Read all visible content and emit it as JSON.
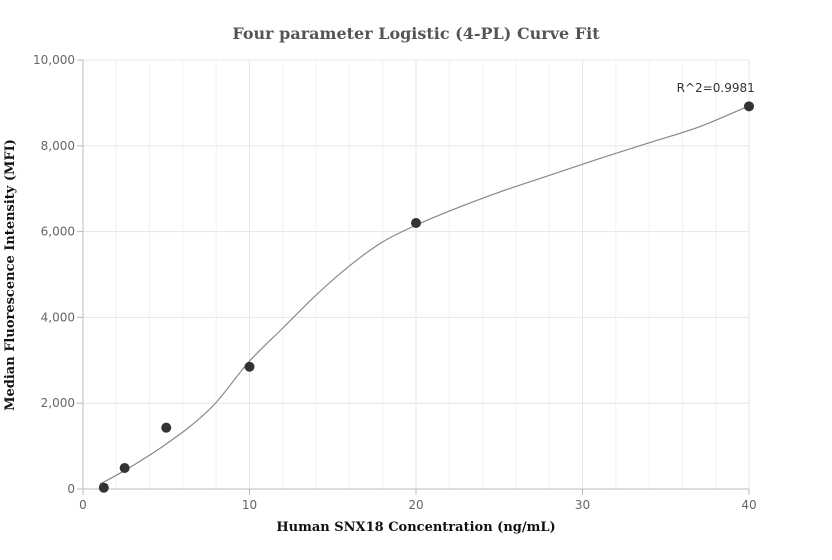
{
  "chart_data": {
    "type": "scatter",
    "title": "Four parameter Logistic (4-PL) Curve Fit",
    "xlabel": "Human SNX18 Concentration (ng/mL)",
    "ylabel": "Median Fluorescence Intensity (MFI)",
    "xlim": [
      0,
      40
    ],
    "ylim": [
      0,
      10000
    ],
    "x_ticks": [
      0,
      10,
      20,
      30,
      40
    ],
    "y_ticks": [
      0,
      2000,
      4000,
      6000,
      8000,
      10000
    ],
    "x_tick_labels": [
      "0",
      "10",
      "20",
      "30",
      "40"
    ],
    "y_tick_labels": [
      "0",
      "2,000",
      "4,000",
      "6,000",
      "8,000",
      "10,000"
    ],
    "grid": true,
    "colors": {
      "points": "#333333",
      "curve": "#888888",
      "grid": "#e6e6e6",
      "minor_grid": "#f2f2f2",
      "axis": "#bbbbbb"
    },
    "series": [
      {
        "values": [
          {
            "x": 1.25,
            "y": 30
          },
          {
            "x": 2.5,
            "y": 490
          },
          {
            "x": 5,
            "y": 1430
          },
          {
            "x": 10,
            "y": 2850
          },
          {
            "x": 20,
            "y": 6200
          },
          {
            "x": 40,
            "y": 8920
          }
        ]
      }
    ],
    "fit_curve": [
      [
        1.0,
        110
      ],
      [
        2.5,
        430
      ],
      [
        4.0,
        790
      ],
      [
        5.0,
        1050
      ],
      [
        6.5,
        1480
      ],
      [
        8.0,
        2020
      ],
      [
        10.0,
        2980
      ],
      [
        12.0,
        3750
      ],
      [
        14.0,
        4520
      ],
      [
        16.0,
        5200
      ],
      [
        18.0,
        5760
      ],
      [
        20.0,
        6150
      ],
      [
        22.0,
        6480
      ],
      [
        25.0,
        6920
      ],
      [
        28.0,
        7310
      ],
      [
        31.0,
        7700
      ],
      [
        34.0,
        8070
      ],
      [
        37.0,
        8440
      ],
      [
        40.0,
        8930
      ]
    ],
    "annotations": [
      {
        "text": "R^2=0.9981",
        "x": 38.0,
        "y": 9250
      }
    ]
  }
}
